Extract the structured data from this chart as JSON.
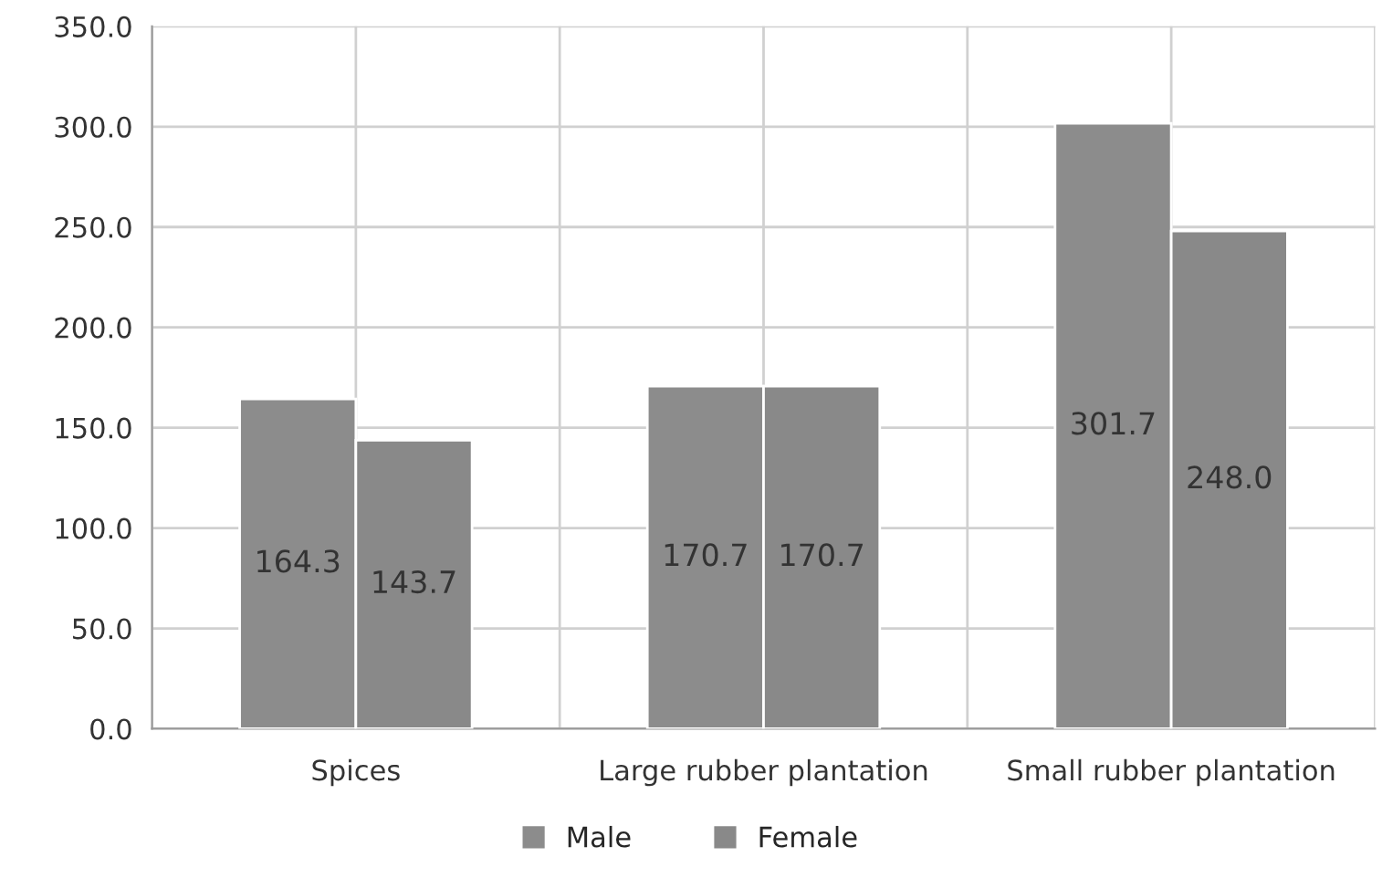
{
  "chart_data": {
    "type": "bar",
    "categories": [
      "Spices",
      "Large rubber plantation",
      "Small rubber plantation"
    ],
    "series": [
      {
        "name": "Male",
        "color": "#8c8c8c",
        "values": [
          164.3,
          170.7,
          301.7
        ]
      },
      {
        "name": "Female",
        "color": "#898989",
        "values": [
          143.7,
          170.7,
          248.0
        ]
      }
    ],
    "value_labels": [
      [
        "164.3",
        "170.7",
        "301.7"
      ],
      [
        "143.7",
        "170.7",
        "248.0"
      ]
    ],
    "ylim": [
      0,
      350
    ],
    "yticks": [
      {
        "value": 0,
        "label": "0.0"
      },
      {
        "value": 50,
        "label": "50.0"
      },
      {
        "value": 100,
        "label": "100.0"
      },
      {
        "value": 150,
        "label": "150.0"
      },
      {
        "value": 200,
        "label": "200.0"
      },
      {
        "value": 250,
        "label": "250.0"
      },
      {
        "value": 300,
        "label": "300.0"
      },
      {
        "value": 350,
        "label": "350.0"
      }
    ],
    "grid": true,
    "legend": "bottom"
  }
}
